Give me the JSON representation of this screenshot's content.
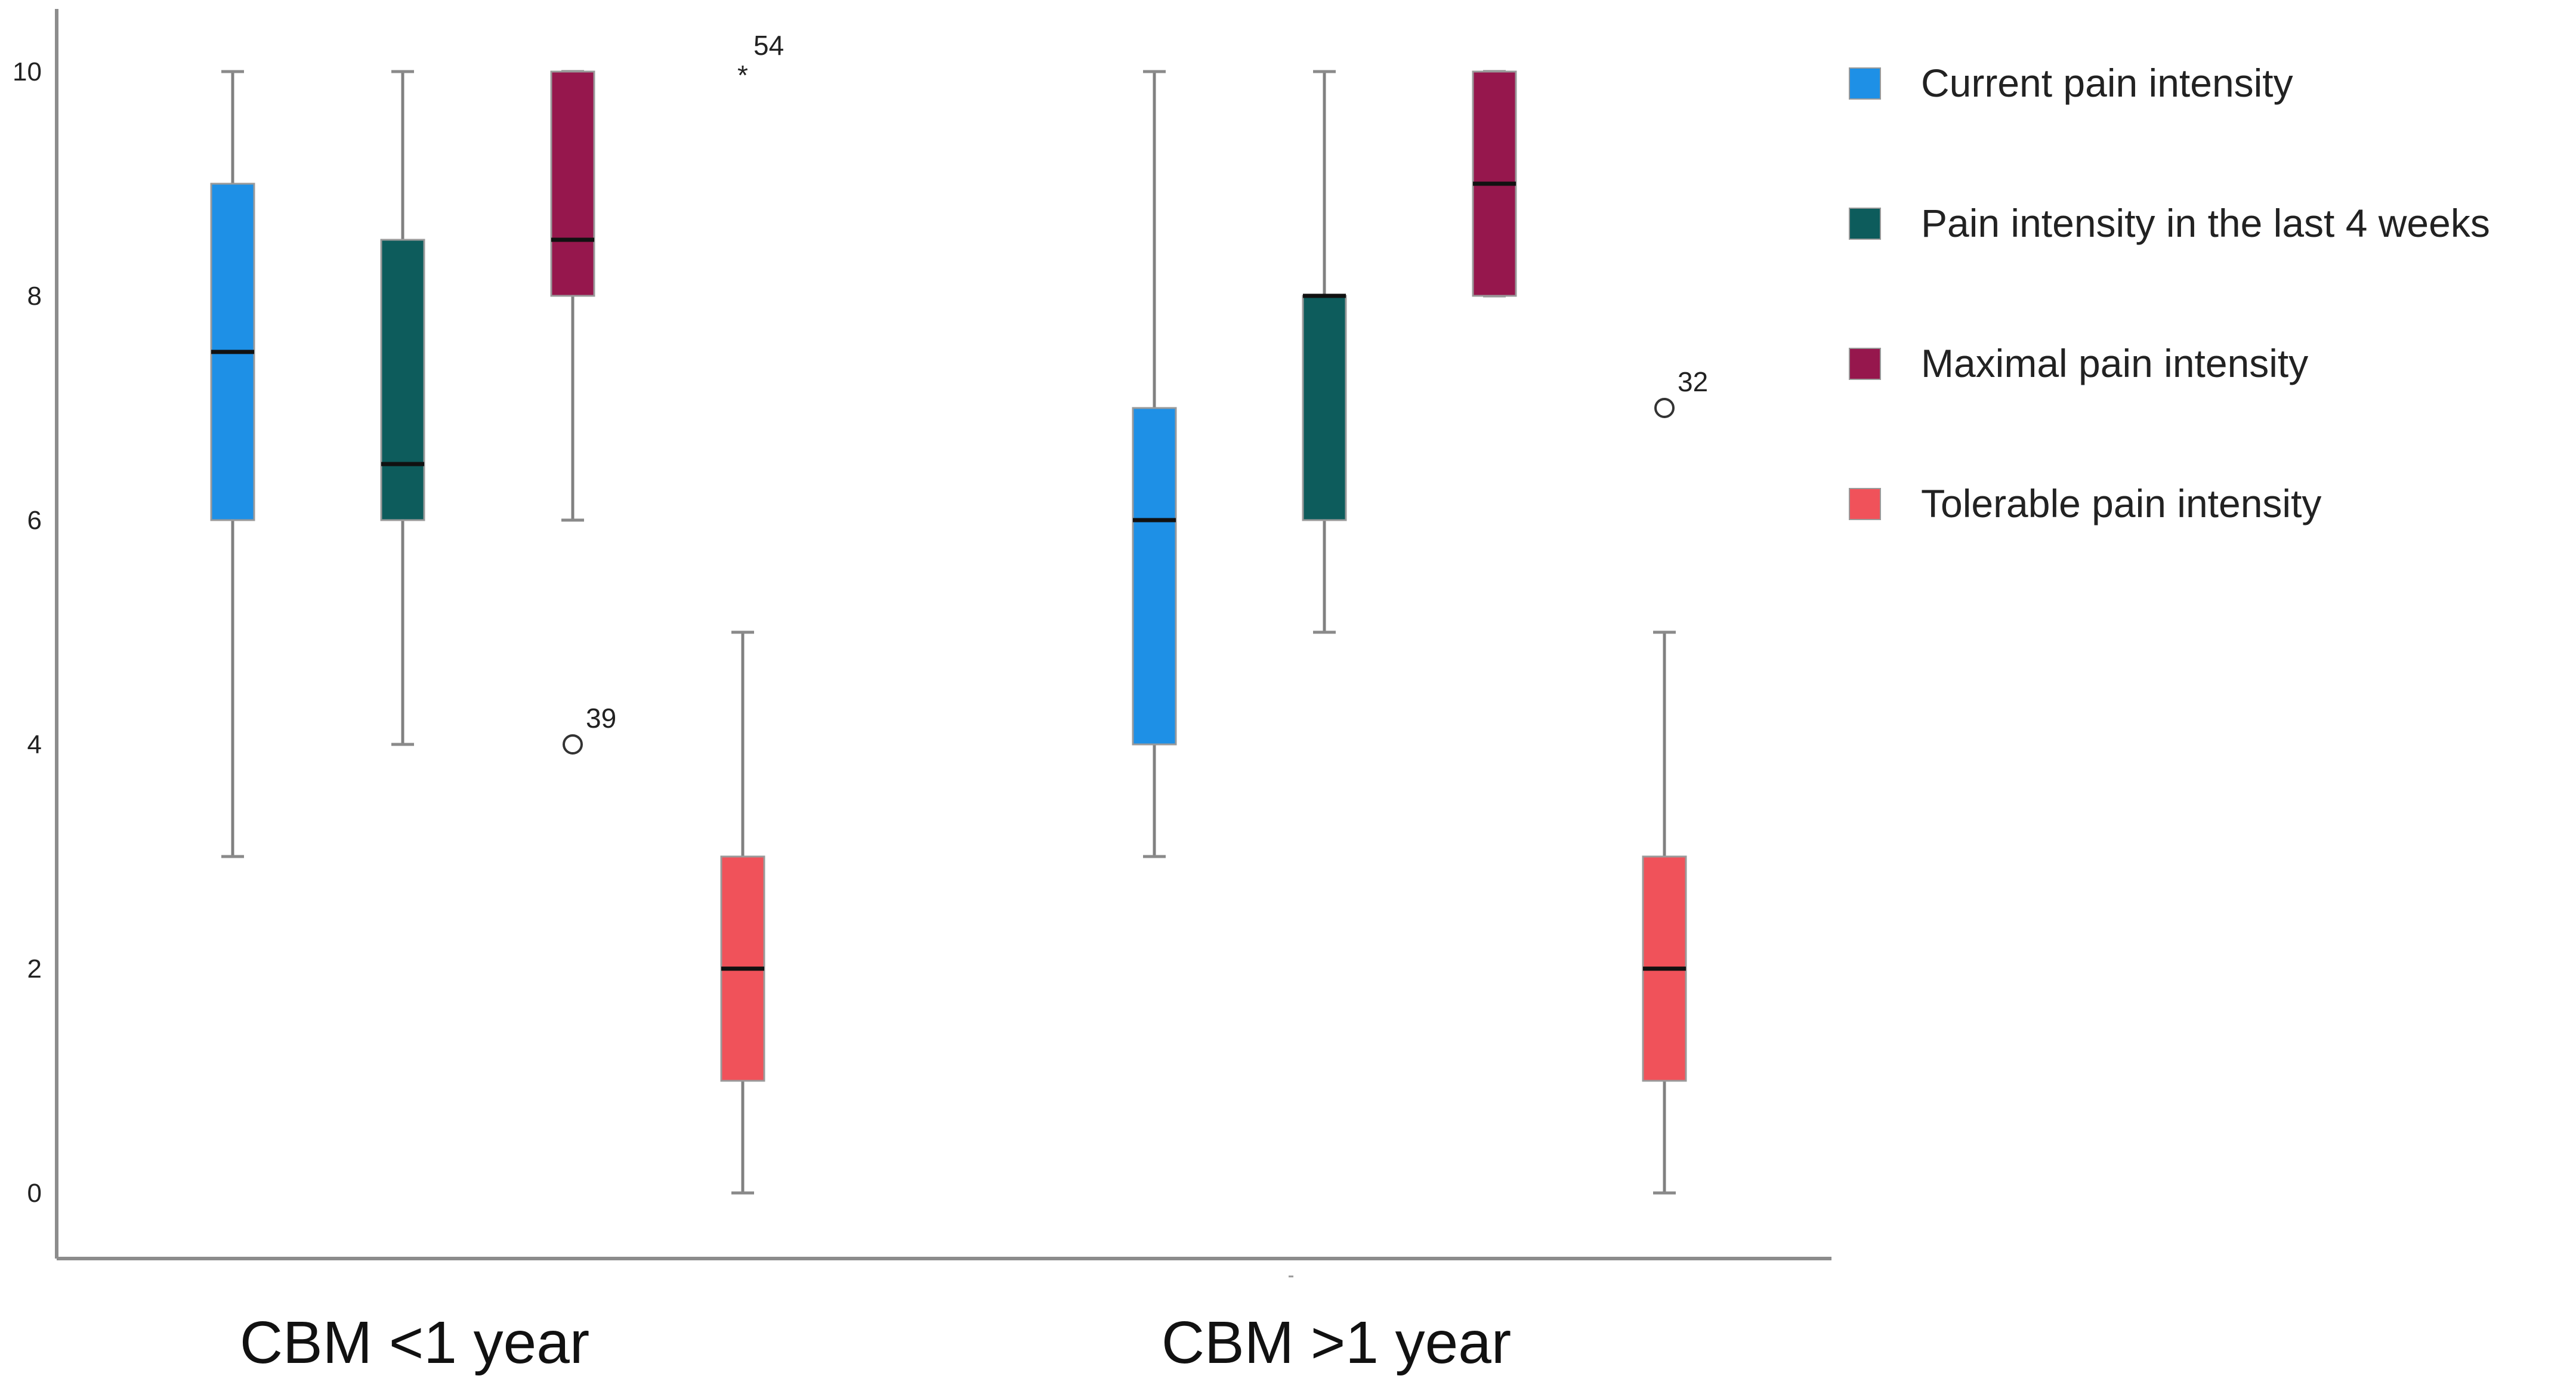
{
  "chart_data": {
    "type": "box",
    "categories": [
      "CBM <1 year",
      "CBM >1 year"
    ],
    "ylim": [
      0,
      10
    ],
    "yticks": [
      "0",
      "2",
      "4",
      "6",
      "8",
      "10"
    ],
    "grid": false,
    "legend_position": "right",
    "series": [
      {
        "name": "Current pain intensity",
        "color": "#1e90e6",
        "boxes": [
          {
            "min": 3,
            "q1": 6,
            "median": 7.5,
            "q3": 9,
            "max": 10,
            "outliers": []
          },
          {
            "min": 3,
            "q1": 4,
            "median": 6,
            "q3": 7,
            "max": 10,
            "outliers": []
          }
        ]
      },
      {
        "name": "Pain intensity in the last 4 weeks",
        "color": "#0d5c5c",
        "boxes": [
          {
            "min": 4,
            "q1": 6,
            "median": 6.5,
            "q3": 8.5,
            "max": 10,
            "outliers": []
          },
          {
            "min": 5,
            "q1": 6,
            "median": 8,
            "q3": 8,
            "max": 10,
            "outliers": []
          }
        ]
      },
      {
        "name": "Maximal pain intensity",
        "color": "#96174d",
        "boxes": [
          {
            "min": 6,
            "q1": 8,
            "median": 8.5,
            "q3": 10,
            "max": 10,
            "outliers": [
              {
                "value": 4,
                "label": "39",
                "marker": "circle"
              }
            ]
          },
          {
            "min": 8,
            "q1": 8,
            "median": 9,
            "q3": 10,
            "max": 10,
            "outliers": []
          }
        ]
      },
      {
        "name": "Tolerable pain intensity",
        "color": "#f0525a",
        "boxes": [
          {
            "min": 0,
            "q1": 1,
            "median": 2,
            "q3": 3,
            "max": 5,
            "outliers": [
              {
                "value": 10,
                "label": "54",
                "marker": "star"
              }
            ]
          },
          {
            "min": 0,
            "q1": 1,
            "median": 2,
            "q3": 3,
            "max": 5,
            "outliers": [
              {
                "value": 7,
                "label": "32",
                "marker": "circle"
              }
            ]
          }
        ]
      }
    ]
  }
}
